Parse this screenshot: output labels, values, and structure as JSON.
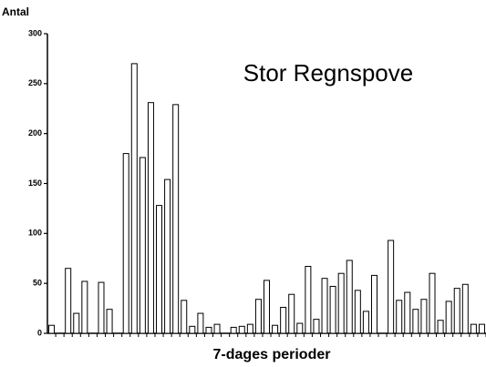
{
  "chart_data": {
    "type": "bar",
    "title": "Stor Regnspove",
    "y_label": "Antal",
    "x_label": "7-dages perioder",
    "categories": [
      null,
      null,
      null,
      null,
      null,
      null,
      null,
      null,
      null,
      null,
      null,
      null,
      null,
      null,
      null,
      null,
      null,
      null,
      null,
      null,
      null,
      null,
      null,
      null,
      null,
      null,
      null,
      null,
      null,
      null,
      null,
      null,
      null,
      null,
      null,
      null,
      null,
      null,
      null,
      null,
      null,
      null,
      null,
      null,
      null,
      null,
      null,
      null,
      null,
      null,
      null,
      null,
      null
    ],
    "values": [
      8,
      0,
      65,
      20,
      52,
      0,
      51,
      24,
      0,
      180,
      270,
      176,
      231,
      128,
      154,
      229,
      33,
      7,
      20,
      6,
      9,
      0,
      6,
      7,
      9,
      34,
      53,
      8,
      26,
      39,
      10,
      67,
      14,
      55,
      47,
      60,
      73,
      43,
      22,
      58,
      0,
      93,
      33,
      41,
      24,
      34,
      60,
      13,
      32,
      45,
      49,
      9,
      9
    ],
    "color": "#ffffff",
    "ylim": [
      0,
      300
    ],
    "yticks": [
      0,
      50,
      100,
      150,
      200,
      250,
      300
    ],
    "grid": false
  }
}
